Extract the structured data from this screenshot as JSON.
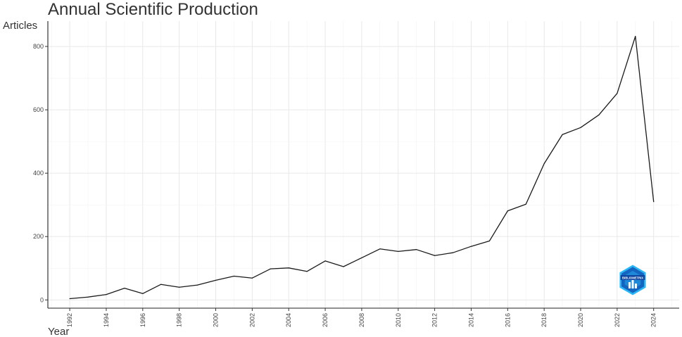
{
  "chart_data": {
    "type": "line",
    "title": "Annual Scientific Production",
    "xlabel": "Year",
    "ylabel": "Articles",
    "x": [
      1992,
      1993,
      1994,
      1995,
      1996,
      1997,
      1998,
      1999,
      2000,
      2001,
      2002,
      2003,
      2004,
      2005,
      2006,
      2007,
      2008,
      2009,
      2010,
      2011,
      2012,
      2013,
      2014,
      2015,
      2016,
      2017,
      2018,
      2019,
      2020,
      2021,
      2022,
      2023,
      2024
    ],
    "series": [
      {
        "values": [
          4,
          9,
          17,
          37,
          20,
          49,
          40,
          47,
          62,
          75,
          69,
          98,
          101,
          90,
          123,
          105,
          133,
          161,
          153,
          159,
          140,
          149,
          169,
          186,
          281,
          302,
          430,
          522,
          544,
          584,
          652,
          832,
          310
        ]
      }
    ],
    "xticks": [
      "1992",
      "1994",
      "1996",
      "1998",
      "2000",
      "2002",
      "2004",
      "2006",
      "2008",
      "2010",
      "2012",
      "2014",
      "2016",
      "2018",
      "2020",
      "2022",
      "2024"
    ],
    "yticks": [
      "0",
      "200",
      "400",
      "600",
      "800"
    ],
    "xlim": [
      1990.8,
      2025.4
    ],
    "ylim": [
      -26,
      880
    ],
    "grid": true,
    "line_color": "#1a1a1a",
    "logo": {
      "name": "bibliometrix-logo",
      "text": "BIBLIOMETRIX",
      "colors": [
        "#1565c0",
        "#29b6f6"
      ]
    }
  }
}
